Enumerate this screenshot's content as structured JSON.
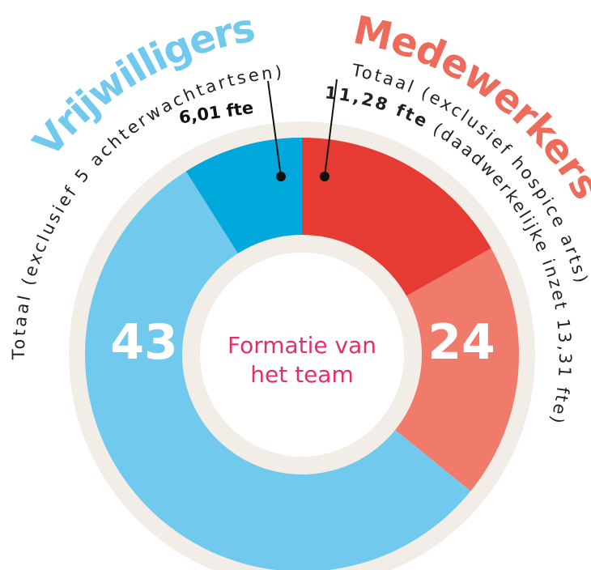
{
  "chart_data": {
    "type": "donut",
    "center_lines": [
      "Formatie van",
      "het team"
    ],
    "series": [
      {
        "name": "Medewerkers",
        "value": 24,
        "color": "#f07b6b",
        "subtitle": "Totaal (exclusief hospice arts)",
        "detail": 11.28,
        "detail_label": "11,28 fte",
        "detail_color": "#e63b33",
        "note": "(daadwerkelijke inzet 13,31 fte)"
      },
      {
        "name": "Vrijwilligers",
        "value": 43,
        "color": "#72c9ee",
        "subtitle": "Totaal (exclusief 5 achterwachtartsen)",
        "detail": 6.01,
        "detail_label": "6,01 fte",
        "detail_color": "#00a8db"
      }
    ]
  }
}
